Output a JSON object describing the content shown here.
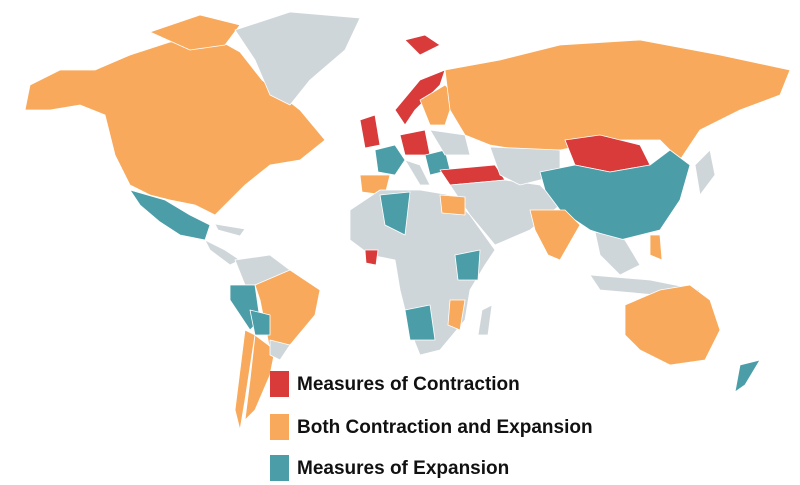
{
  "legend": {
    "items": [
      {
        "label": "Measures of Contraction",
        "color": "#d93a3a"
      },
      {
        "label": "Both Contraction and Expansion",
        "color": "#f8a95b"
      },
      {
        "label": "Measures of Expansion",
        "color": "#4b9ea8"
      }
    ]
  }
}
